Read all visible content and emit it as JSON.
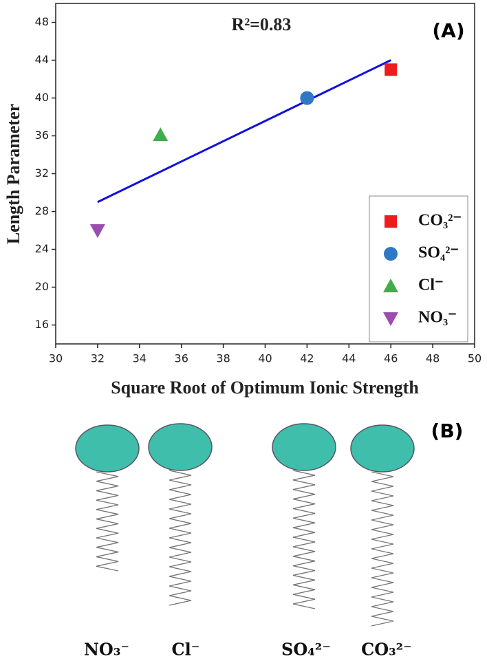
{
  "chart_data": {
    "type": "scatter",
    "panel_label": "(A)",
    "annotation": "R²=0.83",
    "x_label": "Square Root of Optimum Ionic Strength",
    "y_label": "Length Parameter",
    "xlim": [
      30,
      50
    ],
    "xticks": [
      30,
      32,
      34,
      36,
      38,
      40,
      42,
      44,
      46,
      48,
      50
    ],
    "ylim": [
      14,
      50
    ],
    "yticks": [
      16,
      20,
      24,
      28,
      32,
      36,
      40,
      44,
      48
    ],
    "legend": "lower right",
    "series": [
      {
        "name": "CO₃²⁻",
        "color": "#ee1c1c",
        "marker": "square",
        "x": [
          46
        ],
        "values": [
          43
        ]
      },
      {
        "name": "SO₄²⁻",
        "color": "#2f78c4",
        "marker": "circle",
        "x": [
          42
        ],
        "values": [
          40
        ]
      },
      {
        "name": "Cl⁻",
        "color": "#3fae4a",
        "marker": "triangle-up",
        "x": [
          35
        ],
        "values": [
          36.1
        ]
      },
      {
        "name": "NO₃⁻",
        "color": "#9b4dae",
        "marker": "triangle-down",
        "x": [
          32
        ],
        "values": [
          26
        ]
      }
    ],
    "fit": {
      "color": "#1010e0",
      "x": [
        32,
        46
      ],
      "values": [
        29,
        44
      ]
    }
  },
  "diagram": {
    "panel_label": "(B)",
    "labels": [
      "NO₃⁻",
      "Cl⁻",
      "SO₄²⁻",
      "CO₃²⁻"
    ]
  }
}
